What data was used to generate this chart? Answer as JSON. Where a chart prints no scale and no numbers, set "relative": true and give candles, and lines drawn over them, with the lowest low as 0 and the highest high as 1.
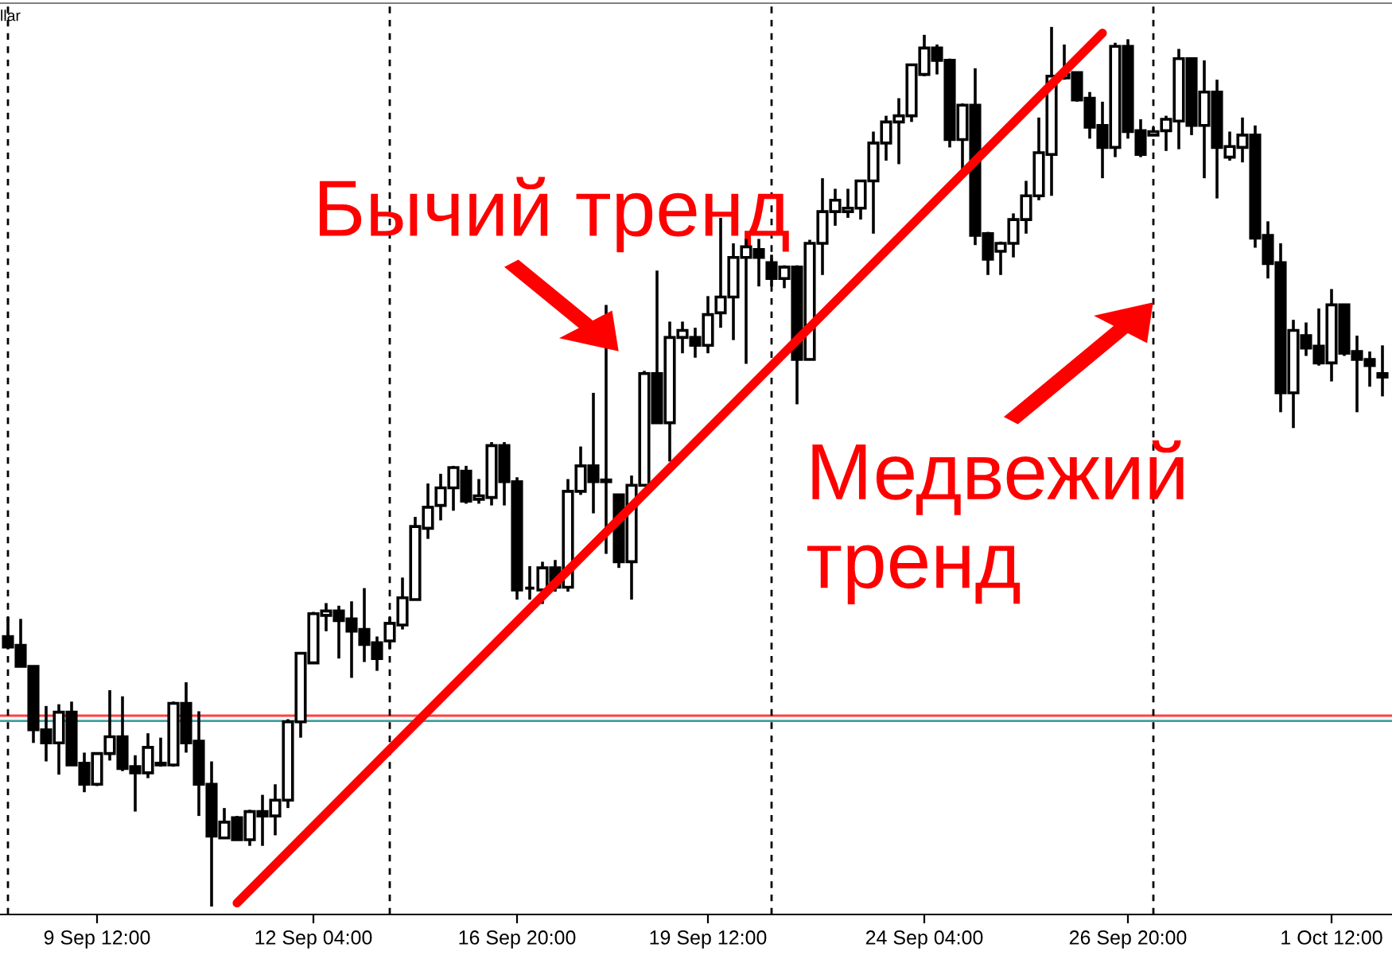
{
  "chart_data": {
    "type": "candlestick",
    "relative": true,
    "categories": [
      null,
      null,
      null,
      null,
      null,
      null,
      null,
      "9 Sep 12:00",
      null,
      null,
      null,
      null,
      null,
      null,
      null,
      null,
      null,
      null,
      null,
      null,
      null,
      null,
      null,
      null,
      "12 Sep 04:00",
      null,
      null,
      null,
      null,
      null,
      null,
      null,
      null,
      null,
      null,
      null,
      null,
      null,
      null,
      null,
      "16 Sep 20:00",
      null,
      null,
      null,
      null,
      null,
      null,
      null,
      null,
      null,
      null,
      null,
      null,
      null,
      null,
      "19 Sep 12:00",
      null,
      null,
      null,
      null,
      null,
      null,
      null,
      null,
      null,
      null,
      null,
      null,
      null,
      null,
      null,
      null,
      "24 Sep 04:00",
      null,
      null,
      null,
      null,
      null,
      null,
      null,
      null,
      null,
      null,
      null,
      null,
      null,
      null,
      null,
      "26 Sep 20:00",
      null,
      null,
      null,
      null,
      null,
      null,
      null,
      null,
      null,
      null,
      null,
      null,
      null,
      null,
      null,
      "1 Oct 12:00",
      null,
      null,
      null,
      null
    ],
    "ohlc": [
      [
        0.307,
        0.329,
        0.293,
        0.295
      ],
      [
        0.297,
        0.327,
        0.273,
        0.273
      ],
      [
        0.273,
        0.273,
        0.186,
        0.201
      ],
      [
        0.201,
        0.228,
        0.165,
        0.186
      ],
      [
        0.186,
        0.23,
        0.15,
        0.221
      ],
      [
        0.221,
        0.233,
        0.161,
        0.161
      ],
      [
        0.163,
        0.175,
        0.13,
        0.139
      ],
      [
        0.139,
        0.175,
        0.137,
        0.174
      ],
      [
        0.174,
        0.246,
        0.166,
        0.193
      ],
      [
        0.193,
        0.239,
        0.154,
        0.157
      ],
      [
        0.159,
        0.172,
        0.108,
        0.152
      ],
      [
        0.152,
        0.197,
        0.146,
        0.181
      ],
      [
        0.163,
        0.192,
        0.159,
        0.161
      ],
      [
        0.161,
        0.233,
        0.159,
        0.231
      ],
      [
        0.231,
        0.255,
        0.175,
        0.186
      ],
      [
        0.188,
        0.222,
        0.103,
        0.139
      ],
      [
        0.139,
        0.165,
        0.0,
        0.08
      ],
      [
        0.078,
        0.112,
        0.078,
        0.096
      ],
      [
        0.101,
        0.103,
        0.076,
        0.076
      ],
      [
        0.076,
        0.11,
        0.069,
        0.108
      ],
      [
        0.108,
        0.127,
        0.069,
        0.103
      ],
      [
        0.103,
        0.139,
        0.081,
        0.121
      ],
      [
        0.121,
        0.213,
        0.112,
        0.21
      ],
      [
        0.21,
        0.289,
        0.192,
        0.288
      ],
      [
        0.277,
        0.335,
        0.277,
        0.333
      ],
      [
        0.331,
        0.345,
        0.313,
        0.336
      ],
      [
        0.336,
        0.342,
        0.282,
        0.325
      ],
      [
        0.327,
        0.347,
        0.26,
        0.313
      ],
      [
        0.315,
        0.362,
        0.278,
        0.298
      ],
      [
        0.3,
        0.307,
        0.268,
        0.282
      ],
      [
        0.302,
        0.329,
        0.293,
        0.322
      ],
      [
        0.32,
        0.374,
        0.315,
        0.351
      ],
      [
        0.349,
        0.443,
        0.349,
        0.432
      ],
      [
        0.43,
        0.481,
        0.418,
        0.454
      ],
      [
        0.456,
        0.492,
        0.439,
        0.476
      ],
      [
        0.476,
        0.501,
        0.45,
        0.499
      ],
      [
        0.495,
        0.501,
        0.458,
        0.461
      ],
      [
        0.463,
        0.486,
        0.458,
        0.467
      ],
      [
        0.465,
        0.528,
        0.456,
        0.524
      ],
      [
        0.524,
        0.528,
        0.456,
        0.483
      ],
      [
        0.483,
        0.488,
        0.349,
        0.36
      ],
      [
        0.362,
        0.387,
        0.349,
        0.362
      ],
      [
        0.36,
        0.392,
        0.344,
        0.385
      ],
      [
        0.385,
        0.394,
        0.358,
        0.363
      ],
      [
        0.363,
        0.486,
        0.358,
        0.472
      ],
      [
        0.472,
        0.523,
        0.468,
        0.501
      ],
      [
        0.501,
        0.584,
        0.447,
        0.483
      ],
      [
        0.483,
        0.684,
        0.401,
        0.485
      ],
      [
        0.468,
        0.468,
        0.385,
        0.392
      ],
      [
        0.392,
        0.49,
        0.349,
        0.479
      ],
      [
        0.479,
        0.609,
        0.479,
        0.606
      ],
      [
        0.606,
        0.723,
        0.55,
        0.55
      ],
      [
        0.55,
        0.665,
        0.506,
        0.647
      ],
      [
        0.647,
        0.665,
        0.629,
        0.655
      ],
      [
        0.647,
        0.658,
        0.624,
        0.638
      ],
      [
        0.638,
        0.694,
        0.629,
        0.673
      ],
      [
        0.675,
        0.783,
        0.658,
        0.693
      ],
      [
        0.693,
        0.754,
        0.644,
        0.738
      ],
      [
        0.738,
        0.759,
        0.617,
        0.75
      ],
      [
        0.747,
        0.759,
        0.705,
        0.738
      ],
      [
        0.732,
        0.741,
        0.705,
        0.714
      ],
      [
        0.714,
        0.729,
        0.703,
        0.727
      ],
      [
        0.727,
        0.729,
        0.571,
        0.622
      ],
      [
        0.622,
        0.758,
        0.622,
        0.754
      ],
      [
        0.754,
        0.828,
        0.718,
        0.79
      ],
      [
        0.79,
        0.816,
        0.774,
        0.803
      ],
      [
        0.79,
        0.816,
        0.783,
        0.794
      ],
      [
        0.794,
        0.825,
        0.781,
        0.825
      ],
      [
        0.825,
        0.881,
        0.765,
        0.868
      ],
      [
        0.868,
        0.899,
        0.848,
        0.892
      ],
      [
        0.892,
        0.919,
        0.844,
        0.899
      ],
      [
        0.899,
        0.958,
        0.892,
        0.957
      ],
      [
        0.946,
        0.991,
        0.944,
        0.976
      ],
      [
        0.976,
        0.98,
        0.946,
        0.962
      ],
      [
        0.962,
        0.964,
        0.863,
        0.872
      ],
      [
        0.872,
        0.913,
        0.837,
        0.911
      ],
      [
        0.911,
        0.953,
        0.752,
        0.763
      ],
      [
        0.765,
        0.767,
        0.718,
        0.736
      ],
      [
        0.745,
        0.756,
        0.718,
        0.754
      ],
      [
        0.754,
        0.788,
        0.738,
        0.781
      ],
      [
        0.781,
        0.825,
        0.765,
        0.808
      ],
      [
        0.808,
        0.897,
        0.803,
        0.857
      ],
      [
        0.855,
        1.0,
        0.808,
        0.944
      ],
      [
        0.942,
        0.98,
        0.94,
        0.946
      ],
      [
        0.948,
        0.948,
        0.915,
        0.917
      ],
      [
        0.919,
        0.926,
        0.873,
        0.886
      ],
      [
        0.888,
        0.915,
        0.828,
        0.863
      ],
      [
        0.863,
        0.982,
        0.852,
        0.978
      ],
      [
        0.978,
        0.986,
        0.873,
        0.881
      ],
      [
        0.882,
        0.895,
        0.852,
        0.855
      ],
      [
        0.877,
        0.886,
        0.877,
        0.881
      ],
      [
        0.882,
        0.899,
        0.859,
        0.895
      ],
      [
        0.893,
        0.975,
        0.861,
        0.964
      ],
      [
        0.964,
        0.964,
        0.877,
        0.888
      ],
      [
        0.888,
        0.962,
        0.828,
        0.926
      ],
      [
        0.926,
        0.94,
        0.805,
        0.863
      ],
      [
        0.852,
        0.881,
        0.848,
        0.864
      ],
      [
        0.863,
        0.897,
        0.846,
        0.877
      ],
      [
        0.877,
        0.888,
        0.749,
        0.76
      ],
      [
        0.763,
        0.779,
        0.714,
        0.731
      ],
      [
        0.732,
        0.754,
        0.562,
        0.584
      ],
      [
        0.584,
        0.667,
        0.544,
        0.655
      ],
      [
        0.649,
        0.664,
        0.626,
        0.635
      ],
      [
        0.637,
        0.68,
        0.615,
        0.618
      ],
      [
        0.618,
        0.702,
        0.597,
        0.684
      ],
      [
        0.684,
        0.684,
        0.626,
        0.629
      ],
      [
        0.631,
        0.649,
        0.562,
        0.622
      ],
      [
        0.622,
        0.631,
        0.591,
        0.615
      ],
      [
        0.606,
        0.638,
        0.58,
        0.602
      ]
    ],
    "series": [
      {
        "type": "line",
        "values": [
          null,
          null,
          null,
          null,
          null,
          null,
          null,
          null,
          null,
          null,
          null,
          null,
          null,
          null,
          null,
          null,
          null,
          null,
          0.004,
          null,
          null,
          null,
          null,
          null,
          null,
          null,
          null,
          null,
          null,
          null,
          null,
          null,
          null,
          null,
          null,
          null,
          null,
          null,
          null,
          null,
          null,
          null,
          null,
          null,
          null,
          null,
          null,
          null,
          null,
          null,
          null,
          null,
          null,
          null,
          null,
          null,
          null,
          null,
          null,
          null,
          null,
          null,
          null,
          null,
          null,
          null,
          null,
          null,
          null,
          null,
          null,
          null,
          null,
          null,
          null,
          null,
          null,
          null,
          null,
          null,
          null,
          null,
          null,
          null,
          null,
          null,
          0.993,
          null,
          null,
          null,
          null,
          null,
          null,
          null,
          null,
          null,
          null,
          null,
          null,
          null,
          null,
          null,
          null,
          null,
          null,
          null,
          null,
          null,
          null
        ],
        "color": "#ff0000"
      }
    ],
    "ref_lines": [
      {
        "axis": "y",
        "value": 0.217,
        "color": "#ff4040",
        "line_style": "solid"
      },
      {
        "axis": "y",
        "value": 0.211,
        "color": "#40a0a0",
        "line_style": "solid"
      }
    ],
    "annotations": [
      "llar",
      "Бычий тренд",
      "Медвежий\nтренд"
    ],
    "grid": "x",
    "legend": false
  }
}
